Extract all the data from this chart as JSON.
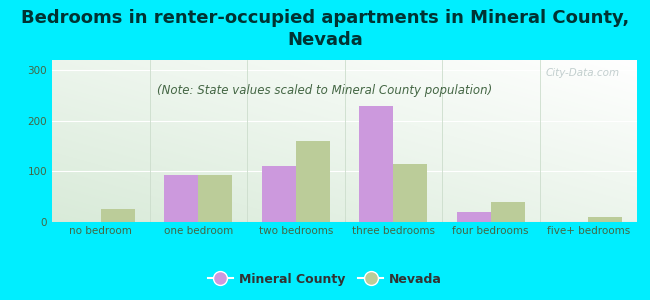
{
  "title": "Bedrooms in renter-occupied apartments in Mineral County,\nNevada",
  "subtitle": "(Note: State values scaled to Mineral County population)",
  "categories": [
    "no bedroom",
    "one bedroom",
    "two bedrooms",
    "three bedrooms",
    "four bedrooms",
    "five+ bedrooms"
  ],
  "mineral_county": [
    0,
    93,
    110,
    230,
    20,
    0
  ],
  "nevada": [
    25,
    93,
    160,
    115,
    40,
    10
  ],
  "mineral_color": "#cc99dd",
  "nevada_color": "#bbcc99",
  "background_outer": "#00eeff",
  "ylim": [
    0,
    320
  ],
  "yticks": [
    0,
    100,
    200,
    300
  ],
  "bar_width": 0.35,
  "title_fontsize": 13,
  "subtitle_fontsize": 8.5,
  "tick_fontsize": 7.5,
  "legend_fontsize": 9,
  "watermark": "City-Data.com"
}
